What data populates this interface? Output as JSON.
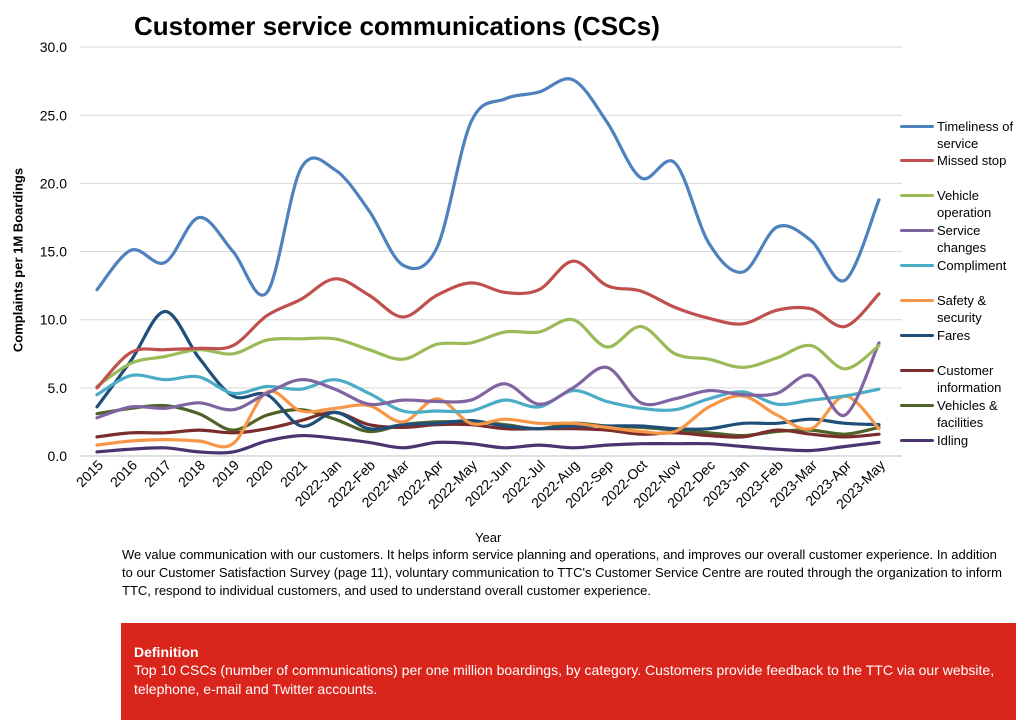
{
  "chart_data": {
    "type": "line",
    "title": "Customer service communications (CSCs)",
    "xlabel": "Year",
    "ylabel": "Complaints per 1M Boardings",
    "ylim": [
      0,
      30
    ],
    "yticks": [
      "0.0",
      "5.0",
      "10.0",
      "15.0",
      "20.0",
      "25.0",
      "30.0"
    ],
    "grid": true,
    "legend_position": "right",
    "categories": [
      "2015",
      "2016",
      "2017",
      "2018",
      "2019",
      "2020",
      "2021",
      "2022-Jan",
      "2022-Feb",
      "2022-Mar",
      "2022-Apr",
      "2022-May",
      "2022-Jun",
      "2022-Jul",
      "2022-Aug",
      "2022-Sep",
      "2022-Oct",
      "2022-Nov",
      "2022-Dec",
      "2023-Jan",
      "2023-Feb",
      "2023-Mar",
      "2023-Apr",
      "2023-May"
    ],
    "series": [
      {
        "name": "Timeliness of service",
        "color": "#4f81bd",
        "values": [
          12.2,
          15.1,
          14.2,
          17.5,
          15.0,
          12.0,
          21.1,
          21.0,
          18.0,
          14.0,
          15.3,
          24.5,
          26.2,
          26.7,
          27.6,
          24.5,
          20.4,
          21.5,
          15.6,
          13.5,
          16.8,
          15.8,
          12.9,
          18.8
        ]
      },
      {
        "name": "Missed stop",
        "color": "#c0504d",
        "values": [
          5.0,
          7.6,
          7.8,
          7.9,
          8.1,
          10.3,
          11.5,
          13.0,
          11.8,
          10.2,
          11.8,
          12.7,
          12.0,
          12.2,
          14.3,
          12.5,
          12.1,
          10.9,
          10.1,
          9.7,
          10.7,
          10.8,
          9.5,
          11.9
        ]
      },
      {
        "name": "Vehicle operation",
        "color": "#9bbb59",
        "values": [
          5.1,
          6.8,
          7.3,
          7.8,
          7.5,
          8.5,
          8.6,
          8.6,
          7.8,
          7.1,
          8.2,
          8.3,
          9.1,
          9.1,
          10.0,
          8.0,
          9.5,
          7.5,
          7.1,
          6.5,
          7.2,
          8.1,
          6.4,
          8.1
        ]
      },
      {
        "name": "Service changes",
        "color": "#8064a2",
        "values": [
          2.8,
          3.6,
          3.5,
          3.9,
          3.4,
          4.6,
          5.6,
          4.9,
          3.8,
          4.1,
          4.0,
          4.1,
          5.3,
          3.8,
          5.0,
          6.5,
          3.9,
          4.2,
          4.8,
          4.5,
          4.6,
          5.9,
          3.0,
          8.3
        ]
      },
      {
        "name": "Compliment",
        "color": "#4bacc6",
        "values": [
          4.5,
          5.9,
          5.6,
          5.8,
          4.6,
          5.1,
          4.9,
          5.6,
          4.6,
          3.3,
          3.3,
          3.3,
          4.1,
          3.6,
          4.8,
          4.0,
          3.5,
          3.4,
          4.2,
          4.7,
          3.8,
          4.1,
          4.4,
          4.9
        ]
      },
      {
        "name": "Safety & security",
        "color": "#f79646",
        "values": [
          0.8,
          1.1,
          1.2,
          1.1,
          0.9,
          4.7,
          3.3,
          3.5,
          3.7,
          2.5,
          4.2,
          2.4,
          2.7,
          2.4,
          2.4,
          2.1,
          1.8,
          1.8,
          3.6,
          4.4,
          3.0,
          2.0,
          4.4,
          2.0
        ]
      },
      {
        "name": "Fares",
        "color": "#1f4e79",
        "values": [
          3.6,
          7.0,
          10.6,
          7.2,
          4.4,
          4.5,
          2.2,
          3.2,
          2.0,
          2.3,
          2.4,
          2.6,
          2.2,
          2.0,
          2.2,
          2.2,
          2.2,
          2.0,
          2.0,
          2.4,
          2.4,
          2.7,
          2.4,
          2.3
        ]
      },
      {
        "name": "Customer information",
        "color": "#7b2c2c",
        "values": [
          1.4,
          1.7,
          1.7,
          1.9,
          1.7,
          2.0,
          2.6,
          3.2,
          2.3,
          2.1,
          2.3,
          2.3,
          2.0,
          2.0,
          2.0,
          1.9,
          1.6,
          1.7,
          1.5,
          1.4,
          1.9,
          1.6,
          1.4,
          1.6
        ]
      },
      {
        "name": "Vehicles & facilities",
        "color": "#4f6228",
        "values": [
          3.1,
          3.5,
          3.7,
          3.1,
          1.9,
          3.0,
          3.4,
          2.7,
          1.8,
          2.3,
          2.5,
          2.5,
          2.3,
          2.0,
          2.4,
          2.2,
          2.1,
          1.9,
          1.7,
          1.5,
          1.8,
          1.9,
          1.6,
          2.1
        ]
      },
      {
        "name": "Idling",
        "color": "#4a3570",
        "values": [
          0.3,
          0.5,
          0.6,
          0.3,
          0.3,
          1.1,
          1.5,
          1.3,
          1.0,
          0.6,
          1.0,
          0.9,
          0.6,
          0.8,
          0.6,
          0.8,
          0.9,
          0.9,
          0.9,
          0.7,
          0.5,
          0.4,
          0.7,
          1.0
        ]
      }
    ]
  },
  "legend_labels": [
    {
      "line1": "Timeliness of",
      "line2": "service"
    },
    {
      "line1": "Missed stop",
      "line2": ""
    },
    {
      "line1": "Vehicle",
      "line2": "operation"
    },
    {
      "line1": "Service",
      "line2": "changes"
    },
    {
      "line1": "Compliment",
      "line2": ""
    },
    {
      "line1": "Safety &",
      "line2": "security"
    },
    {
      "line1": "Fares",
      "line2": ""
    },
    {
      "line1": "Customer",
      "line2": "information"
    },
    {
      "line1": "Vehicles &",
      "line2": "facilities"
    },
    {
      "line1": "Idling",
      "line2": ""
    }
  ],
  "description": "We value communication with our customers. It helps inform service planning and operations, and improves our overall customer experience. In addition to our Customer Satisfaction Survey (page 11), voluntary communication to TTC's Customer Service Centre are routed through the organization to inform TTC, respond to individual customers, and used to understand overall customer experience.",
  "definition": {
    "title": "Definition",
    "text": "Top 10 CSCs (number of communications) per one million boardings, by category. Customers provide feedback to the TTC via our website, telephone, e-mail and Twitter accounts."
  }
}
